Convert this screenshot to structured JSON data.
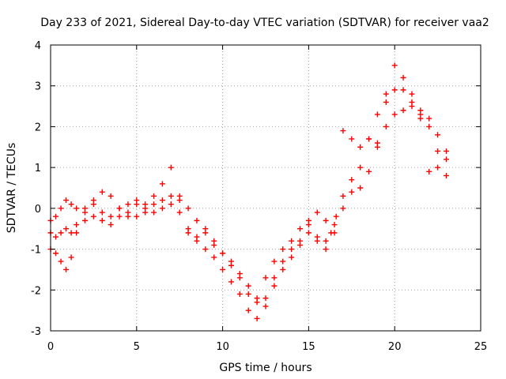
{
  "chart_data": {
    "type": "scatter",
    "title": "Day 233 of 2021, Sidereal Day-to-day VTEC variation (SDTVAR) for receiver vaa2",
    "xlabel": "GPS time / hours",
    "ylabel": "SDTVAR / TECUs",
    "xlim": [
      0,
      25
    ],
    "ylim": [
      -3,
      4
    ],
    "xticks": [
      0,
      5,
      10,
      15,
      20,
      25
    ],
    "yticks": [
      -3,
      -2,
      -1,
      0,
      1,
      2,
      3,
      4
    ],
    "grid": true,
    "marker": "plus",
    "color": "#ff0000",
    "series": [
      {
        "x": [
          0.0,
          0.3,
          0.6,
          0.9,
          1.2,
          1.5,
          2.0,
          2.5,
          3.0,
          3.5,
          4.0,
          4.5,
          5.0,
          5.5,
          6.0,
          6.5,
          7.0,
          7.5,
          8.0,
          8.5,
          9.0,
          9.5,
          10.0,
          10.5,
          11.0,
          11.5,
          12.0,
          12.5,
          13.0,
          13.5,
          14.0,
          14.5,
          15.0,
          15.5,
          16.0,
          16.3,
          16.6,
          17.0,
          17.5,
          18.0,
          18.5,
          19.0,
          19.5,
          20.0,
          20.5,
          21.0,
          21.5,
          22.0,
          22.5,
          23.0
        ],
        "y": [
          -0.3,
          -0.2,
          0.0,
          0.2,
          0.1,
          0.0,
          0.0,
          0.1,
          -0.1,
          -0.2,
          0.0,
          0.1,
          0.2,
          0.1,
          0.1,
          0.2,
          0.3,
          0.2,
          0.0,
          -0.3,
          -0.5,
          -0.9,
          -1.1,
          -1.4,
          -1.7,
          -2.1,
          -2.3,
          -2.2,
          -1.7,
          -1.3,
          -1.0,
          -0.8,
          -0.4,
          -0.1,
          -0.3,
          -0.6,
          -0.2,
          0.3,
          0.7,
          1.0,
          1.7,
          2.3,
          2.6,
          3.5,
          3.2,
          2.8,
          2.4,
          2.2,
          1.8,
          1.4
        ]
      },
      {
        "x": [
          0.0,
          0.3,
          0.6,
          0.9,
          1.2,
          1.5,
          2.0,
          2.5,
          3.0,
          3.5,
          4.0,
          4.5,
          5.0,
          5.5,
          6.0,
          6.5,
          7.0,
          7.5,
          8.0,
          8.5,
          9.0,
          9.5,
          10.0,
          10.5,
          11.0,
          11.5,
          12.0,
          12.5,
          13.0,
          13.5,
          14.0,
          14.5,
          15.0,
          15.5,
          16.0,
          16.5,
          17.0,
          17.5,
          18.0,
          18.5,
          19.0,
          19.5,
          20.0,
          20.5,
          21.0,
          21.5,
          22.0,
          22.5,
          23.0
        ],
        "y": [
          -0.6,
          -0.7,
          -0.6,
          -0.5,
          -0.6,
          -0.4,
          -0.3,
          -0.2,
          -0.3,
          -0.4,
          -0.2,
          -0.1,
          0.1,
          0.0,
          -0.1,
          0.0,
          0.1,
          -0.1,
          -0.5,
          -0.8,
          -1.0,
          -1.2,
          -1.5,
          -1.8,
          -2.1,
          -2.5,
          -2.7,
          -2.4,
          -1.9,
          -1.5,
          -1.2,
          -0.9,
          -0.6,
          -0.7,
          -1.0,
          -0.6,
          0.0,
          0.4,
          0.5,
          0.9,
          1.5,
          2.0,
          2.3,
          2.4,
          2.6,
          2.3,
          2.0,
          1.4,
          1.2
        ]
      },
      {
        "x": [
          0.0,
          0.3,
          0.6,
          0.9,
          1.2,
          1.5,
          2.0,
          2.5,
          3.0,
          3.5,
          4.0,
          4.5,
          5.0,
          5.5,
          6.0,
          6.5,
          7.0,
          7.5,
          8.0,
          8.5,
          9.0,
          9.5,
          10.0,
          10.5,
          11.0,
          11.5,
          12.0,
          12.5,
          13.0,
          13.5,
          14.0,
          14.5,
          15.0,
          15.5,
          16.0,
          16.5,
          17.0,
          17.5,
          18.0,
          18.5,
          19.0,
          19.5,
          20.0,
          20.5,
          21.0,
          21.5,
          22.0,
          22.5,
          23.0
        ],
        "y": [
          -1.0,
          -1.1,
          -1.3,
          -1.5,
          -1.2,
          -0.6,
          -0.1,
          0.2,
          0.4,
          0.3,
          0.0,
          -0.2,
          -0.2,
          -0.1,
          0.3,
          0.6,
          1.0,
          0.3,
          -0.6,
          -0.7,
          -0.6,
          -0.8,
          -1.1,
          -1.3,
          -1.6,
          -1.9,
          -2.2,
          -1.7,
          -1.3,
          -1.0,
          -0.8,
          -0.5,
          -0.3,
          -0.8,
          -0.8,
          -0.4,
          1.9,
          1.7,
          1.5,
          1.7,
          1.6,
          2.8,
          2.9,
          2.9,
          2.5,
          2.2,
          0.9,
          1.0,
          0.8
        ]
      }
    ]
  }
}
